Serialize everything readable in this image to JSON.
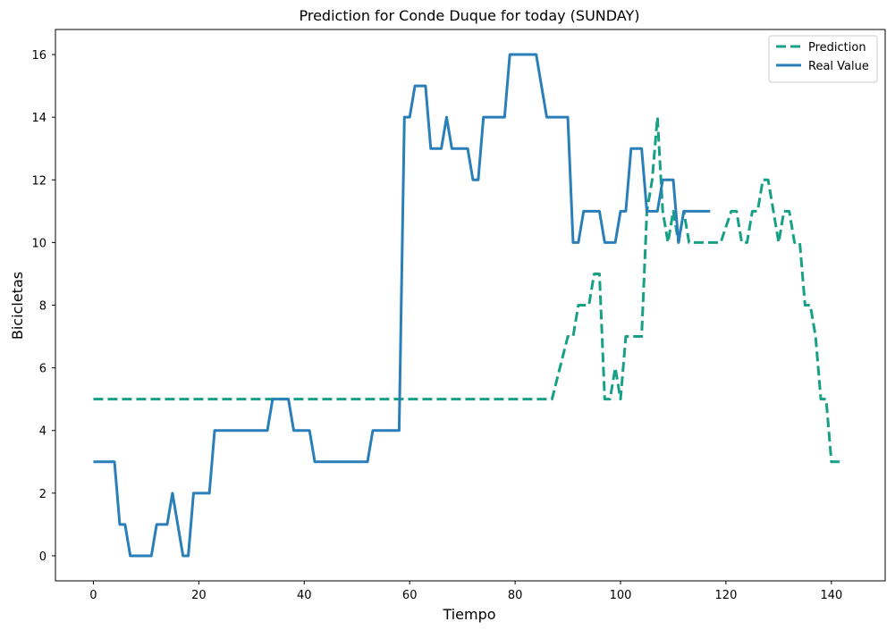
{
  "chart_data": {
    "type": "line",
    "title": "Prediction for Conde Duque for today (SUNDAY)",
    "xlabel": "Tiempo",
    "ylabel": "Bicicletas",
    "xlim": [
      -7.2,
      150.2
    ],
    "ylim": [
      -0.8,
      16.8
    ],
    "xticks": [
      0,
      20,
      40,
      60,
      80,
      100,
      120,
      140
    ],
    "yticks": [
      0,
      2,
      4,
      6,
      8,
      10,
      12,
      14,
      16
    ],
    "grid": false,
    "legend_position": "top-right",
    "series": [
      {
        "name": "Prediction",
        "color": "#17a085",
        "style": "dashed",
        "points": [
          [
            0,
            5
          ],
          [
            87,
            5
          ],
          [
            90,
            7
          ],
          [
            91,
            7
          ],
          [
            92,
            8
          ],
          [
            94,
            8
          ],
          [
            95,
            9
          ],
          [
            96,
            9
          ],
          [
            97,
            5
          ],
          [
            98,
            5
          ],
          [
            99,
            6
          ],
          [
            100,
            5
          ],
          [
            101,
            7
          ],
          [
            104,
            7
          ],
          [
            105,
            11
          ],
          [
            106,
            12
          ],
          [
            107,
            14
          ],
          [
            108,
            11
          ],
          [
            109,
            10
          ],
          [
            110,
            11
          ],
          [
            111,
            10
          ],
          [
            112,
            11
          ],
          [
            113,
            10
          ],
          [
            119,
            10
          ],
          [
            121,
            11
          ],
          [
            122,
            11
          ],
          [
            123,
            10
          ],
          [
            124,
            10
          ],
          [
            125,
            11
          ],
          [
            126,
            11
          ],
          [
            127,
            12
          ],
          [
            128,
            12
          ],
          [
            129,
            11
          ],
          [
            130,
            10
          ],
          [
            131,
            11
          ],
          [
            132,
            11
          ],
          [
            133,
            10
          ],
          [
            134,
            10
          ],
          [
            135,
            8
          ],
          [
            136,
            8
          ],
          [
            137,
            7
          ],
          [
            138,
            5
          ],
          [
            139,
            5
          ],
          [
            140,
            3
          ],
          [
            142,
            3
          ]
        ]
      },
      {
        "name": "Real Value",
        "color": "#2a7fb8",
        "style": "solid",
        "points": [
          [
            0,
            3
          ],
          [
            4,
            3
          ],
          [
            5,
            1
          ],
          [
            6,
            1
          ],
          [
            7,
            0
          ],
          [
            11,
            0
          ],
          [
            12,
            1
          ],
          [
            14,
            1
          ],
          [
            15,
            2
          ],
          [
            17,
            0
          ],
          [
            18,
            0
          ],
          [
            19,
            2
          ],
          [
            22,
            2
          ],
          [
            23,
            4
          ],
          [
            33,
            4
          ],
          [
            34,
            5
          ],
          [
            37,
            5
          ],
          [
            38,
            4
          ],
          [
            41,
            4
          ],
          [
            42,
            3
          ],
          [
            52,
            3
          ],
          [
            53,
            4
          ],
          [
            58,
            4
          ],
          [
            59,
            14
          ],
          [
            60,
            14
          ],
          [
            61,
            15
          ],
          [
            63,
            15
          ],
          [
            64,
            13
          ],
          [
            66,
            13
          ],
          [
            67,
            14
          ],
          [
            68,
            13
          ],
          [
            71,
            13
          ],
          [
            72,
            12
          ],
          [
            73,
            12
          ],
          [
            74,
            14
          ],
          [
            78,
            14
          ],
          [
            79,
            16
          ],
          [
            84,
            16
          ],
          [
            85,
            15
          ],
          [
            86,
            14
          ],
          [
            90,
            14
          ],
          [
            91,
            10
          ],
          [
            92,
            10
          ],
          [
            93,
            11
          ],
          [
            96,
            11
          ],
          [
            97,
            10
          ],
          [
            99,
            10
          ],
          [
            100,
            11
          ],
          [
            101,
            11
          ],
          [
            102,
            13
          ],
          [
            104,
            13
          ],
          [
            105,
            11
          ],
          [
            107,
            11
          ],
          [
            108,
            12
          ],
          [
            110,
            12
          ],
          [
            111,
            10
          ],
          [
            112,
            11
          ],
          [
            117,
            11
          ]
        ]
      }
    ]
  }
}
